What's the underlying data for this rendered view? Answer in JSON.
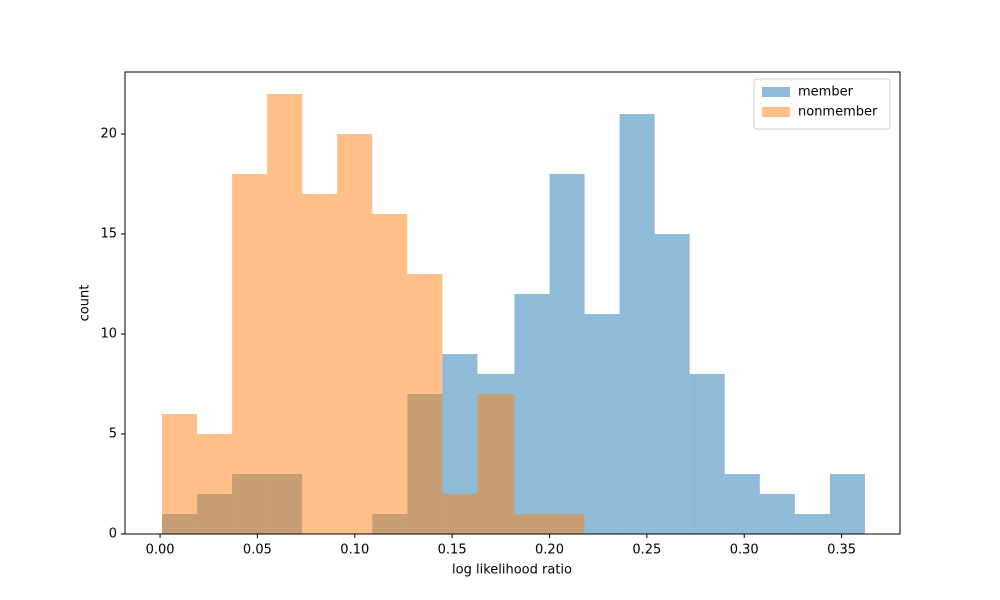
{
  "chart_data": {
    "type": "histogram",
    "xlabel": "log likelihood ratio",
    "ylabel": "count",
    "bins": [
      0.001,
      0.019,
      0.037,
      0.055,
      0.073,
      0.091,
      0.109,
      0.127,
      0.145,
      0.163,
      0.182,
      0.2,
      0.218,
      0.236,
      0.254,
      0.272,
      0.29,
      0.308,
      0.326,
      0.344,
      0.362
    ],
    "series": [
      {
        "name": "member",
        "color": "#1f77b4",
        "values": [
          1,
          2,
          3,
          3,
          0,
          0,
          1,
          7,
          9,
          8,
          12,
          18,
          11,
          21,
          15,
          8,
          3,
          2,
          1,
          3
        ]
      },
      {
        "name": "nonmember",
        "color": "#ff7f0e",
        "values": [
          6,
          5,
          18,
          22,
          17,
          20,
          16,
          13,
          2,
          7,
          1,
          1,
          0,
          0,
          0,
          0,
          0,
          0,
          0,
          0
        ]
      }
    ],
    "opacity": 0.5,
    "xlim": [
      -0.018,
      0.38
    ],
    "ylim": [
      0,
      23.1
    ],
    "xticks": [
      {
        "value": 0,
        "label": "0.00"
      },
      {
        "value": 0.05,
        "label": "0.05"
      },
      {
        "value": 0.1,
        "label": "0.10"
      },
      {
        "value": 0.15,
        "label": "0.15"
      },
      {
        "value": 0.2,
        "label": "0.20"
      },
      {
        "value": 0.25,
        "label": "0.25"
      },
      {
        "value": 0.3,
        "label": "0.30"
      },
      {
        "value": 0.35,
        "label": "0.35"
      }
    ],
    "yticks": [
      0,
      5,
      10,
      15,
      20
    ],
    "legend": "upper right",
    "grid": false
  }
}
